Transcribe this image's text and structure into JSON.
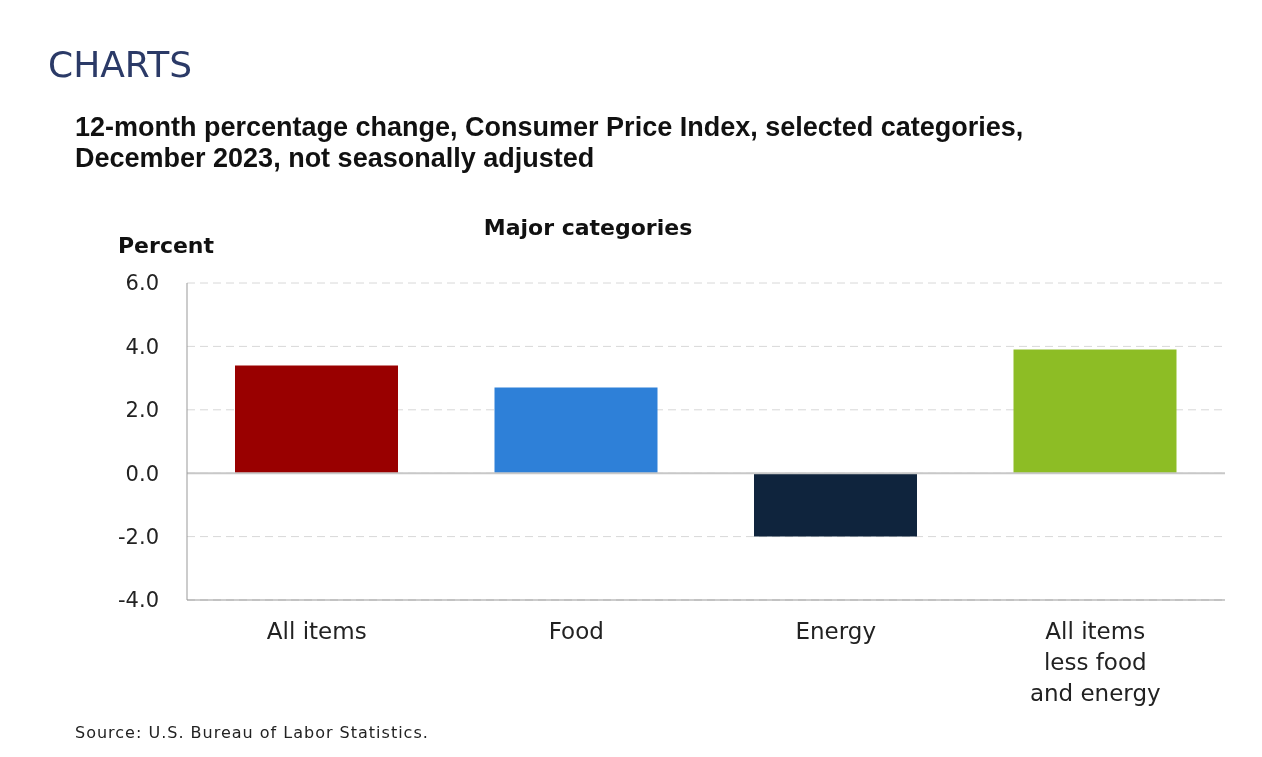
{
  "chart_data": {
    "type": "bar",
    "title": "12-month percentage change, Consumer Price Index, selected categories, December 2023, not seasonally adjusted",
    "subtitle": "Major categories",
    "ylabel": "Percent",
    "annotations": [
      "CHARTS",
      "Source: U.S. Bureau of Labor Statistics."
    ],
    "categories": [
      "All items",
      "Food",
      "Energy",
      "All items less food and energy"
    ],
    "values": [
      3.4,
      2.7,
      -2.0,
      3.9
    ],
    "colors": [
      "#990000",
      "#2e80d8",
      "#0f243d",
      "#8dbd25"
    ],
    "ylim": [
      -4,
      6
    ],
    "yticks": [
      {
        "value": -4,
        "label": "-4.0"
      },
      {
        "value": -2,
        "label": "-2.0"
      },
      {
        "value": 0,
        "label": "0.0"
      },
      {
        "value": 2,
        "label": "2.0"
      },
      {
        "value": 4,
        "label": "4.0"
      },
      {
        "value": 6,
        "label": "6.0"
      }
    ],
    "grid": "y",
    "ref_lines": [
      {
        "axis": "y",
        "value": 0,
        "color": "#c8c8c8"
      }
    ]
  }
}
